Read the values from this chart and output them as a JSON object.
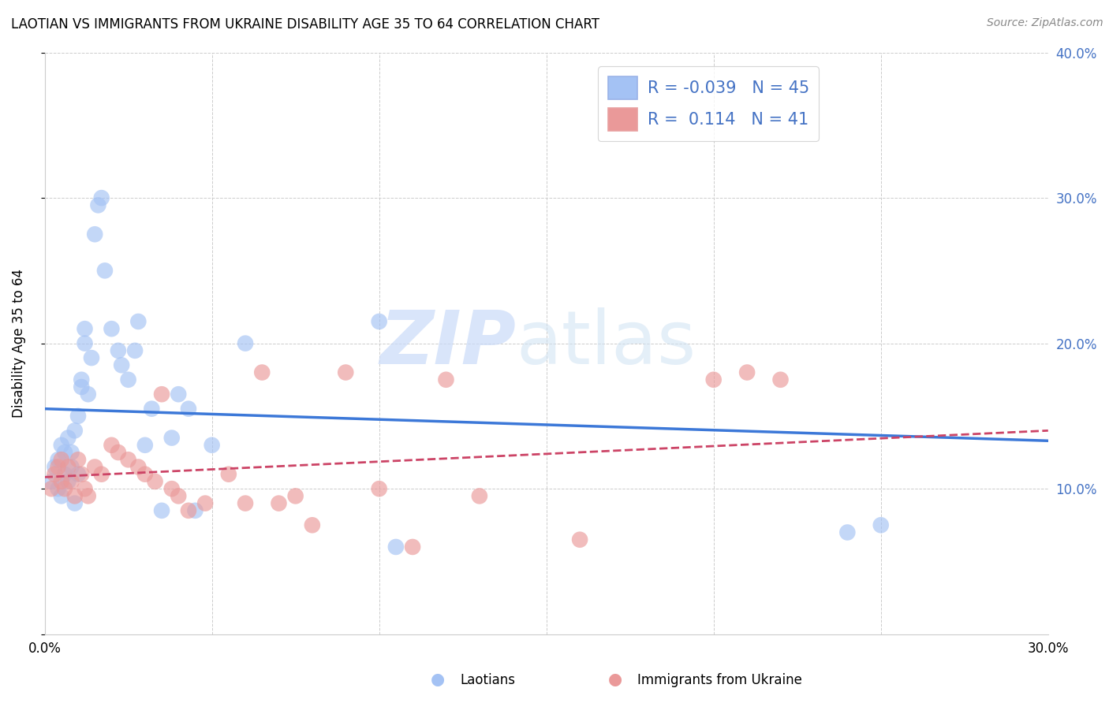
{
  "title": "LAOTIAN VS IMMIGRANTS FROM UKRAINE DISABILITY AGE 35 TO 64 CORRELATION CHART",
  "source": "Source: ZipAtlas.com",
  "ylabel": "Disability Age 35 to 64",
  "x_min": 0.0,
  "x_max": 0.3,
  "y_min": 0.0,
  "y_max": 0.4,
  "y_tick_labels_right": [
    "",
    "10.0%",
    "20.0%",
    "30.0%",
    "40.0%"
  ],
  "legend_label1": "Laotians",
  "legend_label2": "Immigrants from Ukraine",
  "R1": "-0.039",
  "N1": "45",
  "R2": "0.114",
  "N2": "41",
  "blue_color": "#a4c2f4",
  "pink_color": "#ea9999",
  "blue_line_color": "#3c78d8",
  "pink_line_color": "#cc4466",
  "blue_dots_x": [
    0.002,
    0.003,
    0.004,
    0.004,
    0.005,
    0.005,
    0.006,
    0.006,
    0.007,
    0.007,
    0.008,
    0.008,
    0.009,
    0.009,
    0.01,
    0.01,
    0.011,
    0.011,
    0.012,
    0.012,
    0.013,
    0.014,
    0.015,
    0.016,
    0.017,
    0.018,
    0.02,
    0.022,
    0.023,
    0.025,
    0.027,
    0.028,
    0.03,
    0.032,
    0.035,
    0.038,
    0.04,
    0.043,
    0.045,
    0.05,
    0.06,
    0.1,
    0.105,
    0.24,
    0.25
  ],
  "blue_dots_y": [
    0.105,
    0.115,
    0.1,
    0.12,
    0.095,
    0.13,
    0.11,
    0.125,
    0.105,
    0.135,
    0.115,
    0.125,
    0.09,
    0.14,
    0.11,
    0.15,
    0.17,
    0.175,
    0.2,
    0.21,
    0.165,
    0.19,
    0.275,
    0.295,
    0.3,
    0.25,
    0.21,
    0.195,
    0.185,
    0.175,
    0.195,
    0.215,
    0.13,
    0.155,
    0.085,
    0.135,
    0.165,
    0.155,
    0.085,
    0.13,
    0.2,
    0.215,
    0.06,
    0.07,
    0.075
  ],
  "pink_dots_x": [
    0.002,
    0.003,
    0.004,
    0.005,
    0.005,
    0.006,
    0.007,
    0.008,
    0.009,
    0.01,
    0.011,
    0.012,
    0.013,
    0.015,
    0.017,
    0.02,
    0.022,
    0.025,
    0.028,
    0.03,
    0.033,
    0.035,
    0.038,
    0.04,
    0.043,
    0.048,
    0.055,
    0.06,
    0.065,
    0.07,
    0.075,
    0.08,
    0.09,
    0.1,
    0.11,
    0.12,
    0.13,
    0.16,
    0.2,
    0.21,
    0.22
  ],
  "pink_dots_y": [
    0.1,
    0.11,
    0.115,
    0.105,
    0.12,
    0.1,
    0.115,
    0.105,
    0.095,
    0.12,
    0.11,
    0.1,
    0.095,
    0.115,
    0.11,
    0.13,
    0.125,
    0.12,
    0.115,
    0.11,
    0.105,
    0.165,
    0.1,
    0.095,
    0.085,
    0.09,
    0.11,
    0.09,
    0.18,
    0.09,
    0.095,
    0.075,
    0.18,
    0.1,
    0.06,
    0.175,
    0.095,
    0.065,
    0.175,
    0.18,
    0.175
  ],
  "blue_line_x0": 0.0,
  "blue_line_y0": 0.155,
  "blue_line_x1": 0.3,
  "blue_line_y1": 0.133,
  "pink_line_x0": 0.0,
  "pink_line_y0": 0.108,
  "pink_line_x1": 0.3,
  "pink_line_y1": 0.14
}
